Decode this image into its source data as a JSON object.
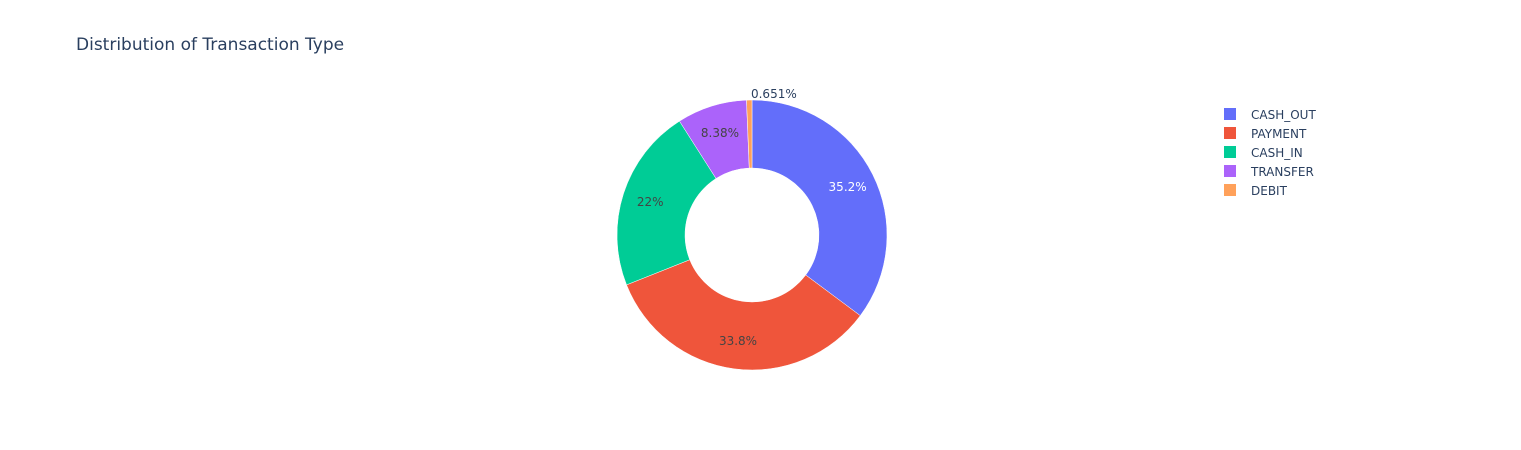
{
  "chart_data": {
    "type": "pie",
    "donut": true,
    "title": "Distribution of Transaction Type",
    "slices": [
      {
        "label": "CASH_OUT",
        "value": 35.2,
        "display": "35.2%",
        "color": "#636efa"
      },
      {
        "label": "PAYMENT",
        "value": 33.8,
        "display": "33.8%",
        "color": "#ef553b"
      },
      {
        "label": "CASH_IN",
        "value": 22.0,
        "display": "22%",
        "color": "#00cc96"
      },
      {
        "label": "TRANSFER",
        "value": 8.38,
        "display": "8.38%",
        "color": "#ab63fa"
      },
      {
        "label": "DEBIT",
        "value": 0.651,
        "display": "0.651%",
        "color": "#ffa15a"
      }
    ],
    "legend": {
      "position": "top-right"
    }
  }
}
